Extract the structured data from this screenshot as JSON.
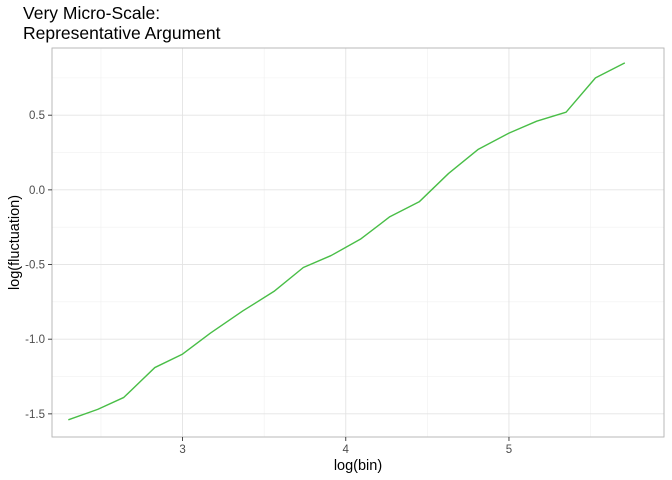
{
  "chart_data": {
    "type": "line",
    "title_lines": [
      "Very Micro-Scale:",
      "Representative Argument"
    ],
    "xlabel": "log(bin)",
    "ylabel": "log(fluctuation)",
    "xlim": [
      2.2,
      5.95
    ],
    "ylim": [
      -1.655,
      0.95
    ],
    "x_ticks": [
      3,
      4,
      5
    ],
    "x_tick_labels": [
      "3",
      "4",
      "5"
    ],
    "x_minor_ticks": [
      2.5,
      3.5,
      4.5,
      5.5
    ],
    "y_ticks": [
      -1.5,
      -1.0,
      -0.5,
      0.0,
      0.5
    ],
    "y_tick_labels": [
      "-1.5",
      "-1.0",
      "-0.5",
      "0.0",
      "0.5"
    ],
    "y_minor_ticks": [
      -1.25,
      -0.75,
      -0.25,
      0.25,
      0.75
    ],
    "grid": true,
    "legend": "none",
    "series": [
      {
        "color": "#49be47",
        "x": [
          2.3,
          2.48,
          2.64,
          2.83,
          3.0,
          3.17,
          3.37,
          3.56,
          3.74,
          3.91,
          4.09,
          4.27,
          4.45,
          4.63,
          4.81,
          5.0,
          5.17,
          5.35,
          5.53,
          5.71
        ],
        "y": [
          -1.54,
          -1.47,
          -1.39,
          -1.19,
          -1.1,
          -0.96,
          -0.81,
          -0.68,
          -0.52,
          -0.44,
          -0.33,
          -0.18,
          -0.08,
          0.11,
          0.27,
          0.38,
          0.46,
          0.52,
          0.75,
          0.85
        ]
      }
    ]
  }
}
